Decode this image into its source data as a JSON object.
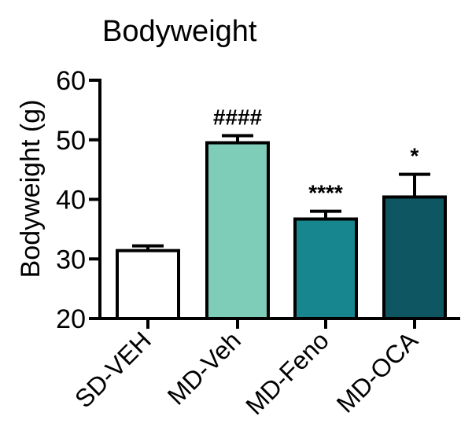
{
  "chart_data": {
    "type": "bar",
    "title": "Bodyweight",
    "ylabel": "Bodyweight (g)",
    "xlabel": "",
    "ylim": [
      20,
      60
    ],
    "yticks": [
      20,
      30,
      40,
      50,
      60
    ],
    "categories": [
      "SD-VEH",
      "MD-Veh",
      "MD-Feno",
      "MD-OCA"
    ],
    "values": [
      31.4,
      49.5,
      36.7,
      40.4
    ],
    "errors": [
      0.8,
      1.2,
      1.3,
      3.8
    ],
    "annotations": [
      "",
      "####",
      "****",
      "*"
    ],
    "colors": [
      "#ffffff",
      "#7ecdb9",
      "#17868f",
      "#0e5662"
    ],
    "grid": false
  }
}
